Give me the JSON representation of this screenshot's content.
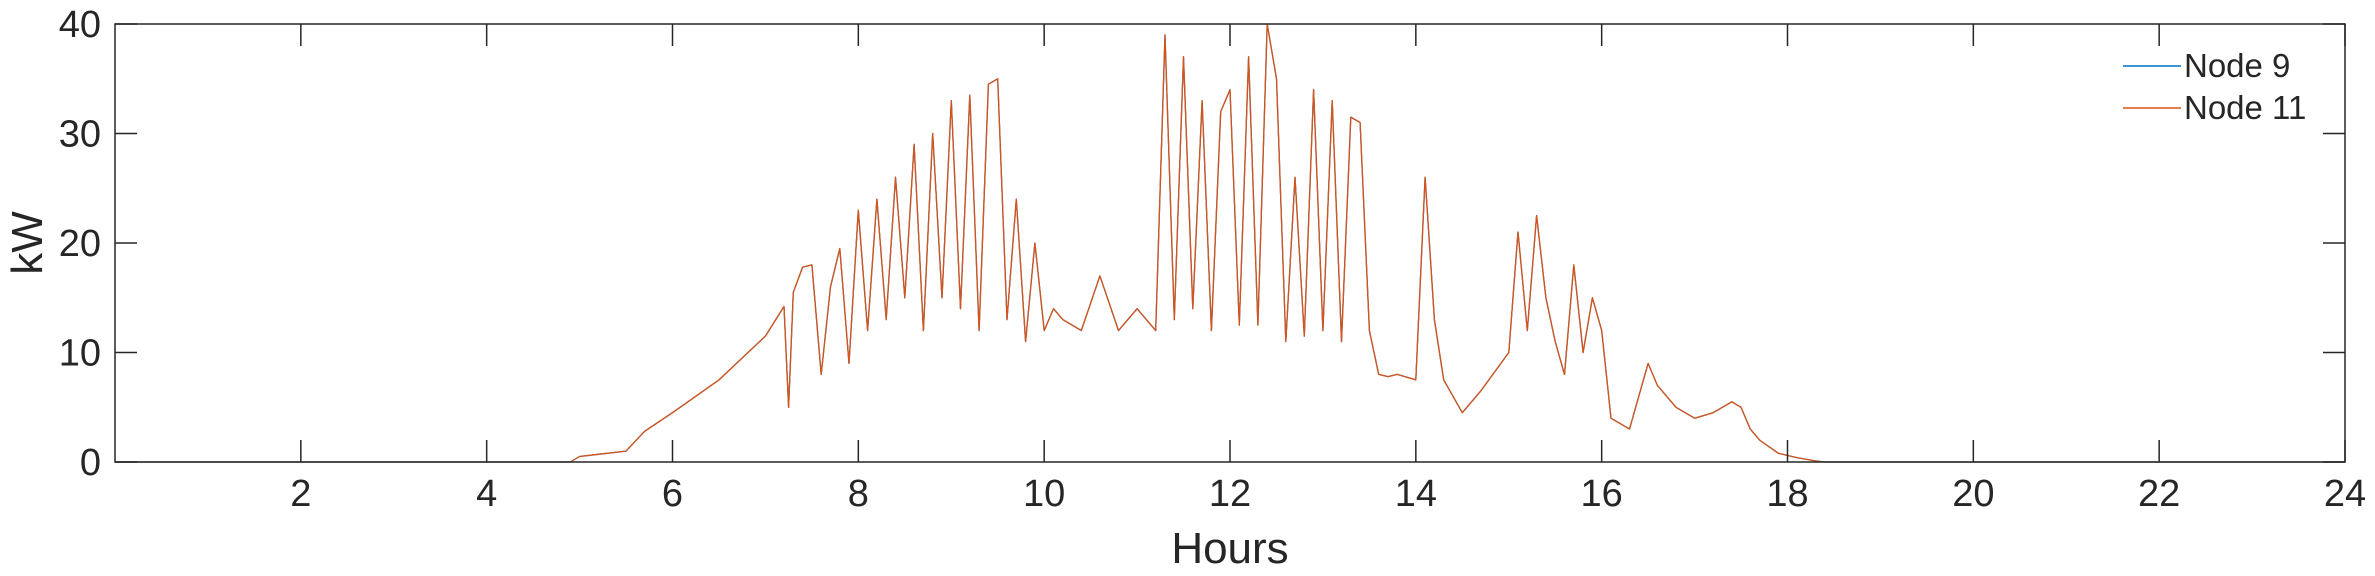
{
  "chart_data": {
    "type": "line",
    "title": "",
    "xlabel": "Hours",
    "ylabel": "kW",
    "xlim": [
      0,
      24
    ],
    "ylim": [
      0,
      40
    ],
    "xticks": [
      2,
      4,
      6,
      8,
      10,
      12,
      14,
      16,
      18,
      20,
      22,
      24
    ],
    "yticks": [
      0,
      10,
      20,
      30,
      40
    ],
    "grid": false,
    "legend_position": "top-right",
    "series": [
      {
        "name": "Node 9",
        "color": "#0072BD",
        "x": [
          0,
          4.9,
          5.0,
          5.2,
          5.5,
          5.7,
          6.0,
          6.5,
          7.0,
          7.2,
          7.25,
          7.3,
          7.4,
          7.5,
          7.6,
          7.7,
          7.8,
          7.9,
          8.0,
          8.1,
          8.2,
          8.3,
          8.4,
          8.5,
          8.6,
          8.7,
          8.8,
          8.9,
          9.0,
          9.1,
          9.2,
          9.3,
          9.4,
          9.5,
          9.6,
          9.7,
          9.8,
          9.9,
          10.0,
          10.1,
          10.2,
          10.4,
          10.6,
          10.8,
          11.0,
          11.2,
          11.3,
          11.4,
          11.5,
          11.6,
          11.7,
          11.8,
          11.9,
          12.0,
          12.1,
          12.2,
          12.3,
          12.4,
          12.5,
          12.6,
          12.7,
          12.8,
          12.9,
          13.0,
          13.1,
          13.2,
          13.3,
          13.4,
          13.5,
          13.6,
          13.7,
          13.8,
          14.0,
          14.1,
          14.2,
          14.3,
          14.5,
          14.7,
          15.0,
          15.1,
          15.2,
          15.3,
          15.4,
          15.5,
          15.6,
          15.7,
          15.8,
          15.9,
          16.0,
          16.1,
          16.3,
          16.5,
          16.6,
          16.7,
          16.8,
          17.0,
          17.2,
          17.4,
          17.5,
          17.6,
          17.7,
          17.9,
          18.1,
          18.3,
          18.4,
          24
        ],
        "values": [
          0,
          0,
          0.5,
          0.7,
          1.0,
          2.8,
          4.5,
          7.5,
          11.5,
          14.2,
          5.0,
          15.5,
          17.8,
          18.0,
          8.0,
          16.0,
          19.5,
          9.0,
          23.0,
          12.0,
          24.0,
          13.0,
          26.0,
          15.0,
          29.0,
          12.0,
          30.0,
          15.0,
          33.0,
          14.0,
          33.5,
          12.0,
          34.5,
          35.0,
          13.0,
          24.0,
          11.0,
          20.0,
          12.0,
          14.0,
          13.0,
          12.0,
          17.0,
          12.0,
          14.0,
          12.0,
          39.0,
          13.0,
          37.0,
          14.0,
          33.0,
          12.0,
          32.0,
          34.0,
          12.5,
          37.0,
          12.5,
          40.0,
          35.0,
          11.0,
          26.0,
          11.5,
          34.0,
          12.0,
          33.0,
          11.0,
          31.5,
          31.0,
          12.0,
          8.0,
          7.8,
          8.0,
          7.5,
          26.0,
          13.0,
          7.5,
          4.5,
          6.5,
          10.0,
          21.0,
          12.0,
          22.5,
          15.0,
          11.0,
          8.0,
          18.0,
          10.0,
          15.0,
          12.0,
          4.0,
          3.0,
          9.0,
          7.0,
          6.0,
          5.0,
          4.0,
          4.5,
          5.5,
          5.0,
          3.0,
          2.0,
          0.8,
          0.4,
          0.1,
          0,
          0
        ]
      },
      {
        "name": "Node 11",
        "color": "#D95319",
        "x": [
          0,
          4.9,
          5.0,
          5.2,
          5.5,
          5.7,
          6.0,
          6.5,
          7.0,
          7.2,
          7.25,
          7.3,
          7.4,
          7.5,
          7.6,
          7.7,
          7.8,
          7.9,
          8.0,
          8.1,
          8.2,
          8.3,
          8.4,
          8.5,
          8.6,
          8.7,
          8.8,
          8.9,
          9.0,
          9.1,
          9.2,
          9.3,
          9.4,
          9.5,
          9.6,
          9.7,
          9.8,
          9.9,
          10.0,
          10.1,
          10.2,
          10.4,
          10.6,
          10.8,
          11.0,
          11.2,
          11.3,
          11.4,
          11.5,
          11.6,
          11.7,
          11.8,
          11.9,
          12.0,
          12.1,
          12.2,
          12.3,
          12.4,
          12.5,
          12.6,
          12.7,
          12.8,
          12.9,
          13.0,
          13.1,
          13.2,
          13.3,
          13.4,
          13.5,
          13.6,
          13.7,
          13.8,
          14.0,
          14.1,
          14.2,
          14.3,
          14.5,
          14.7,
          15.0,
          15.1,
          15.2,
          15.3,
          15.4,
          15.5,
          15.6,
          15.7,
          15.8,
          15.9,
          16.0,
          16.1,
          16.3,
          16.5,
          16.6,
          16.7,
          16.8,
          17.0,
          17.2,
          17.4,
          17.5,
          17.6,
          17.7,
          17.9,
          18.1,
          18.3,
          18.4,
          24
        ],
        "values": [
          0,
          0,
          0.5,
          0.7,
          1.0,
          2.8,
          4.5,
          7.5,
          11.5,
          14.2,
          5.0,
          15.5,
          17.8,
          18.0,
          8.0,
          16.0,
          19.5,
          9.0,
          23.0,
          12.0,
          24.0,
          13.0,
          26.0,
          15.0,
          29.0,
          12.0,
          30.0,
          15.0,
          33.0,
          14.0,
          33.5,
          12.0,
          34.5,
          35.0,
          13.0,
          24.0,
          11.0,
          20.0,
          12.0,
          14.0,
          13.0,
          12.0,
          17.0,
          12.0,
          14.0,
          12.0,
          39.0,
          13.0,
          37.0,
          14.0,
          33.0,
          12.0,
          32.0,
          34.0,
          12.5,
          37.0,
          12.5,
          40.0,
          35.0,
          11.0,
          26.0,
          11.5,
          34.0,
          12.0,
          33.0,
          11.0,
          31.5,
          31.0,
          12.0,
          8.0,
          7.8,
          8.0,
          7.5,
          26.0,
          13.0,
          7.5,
          4.5,
          6.5,
          10.0,
          21.0,
          12.0,
          22.5,
          15.0,
          11.0,
          8.0,
          18.0,
          10.0,
          15.0,
          12.0,
          4.0,
          3.0,
          9.0,
          7.0,
          6.0,
          5.0,
          4.0,
          4.5,
          5.5,
          5.0,
          3.0,
          2.0,
          0.8,
          0.4,
          0.1,
          0,
          0
        ]
      }
    ]
  }
}
